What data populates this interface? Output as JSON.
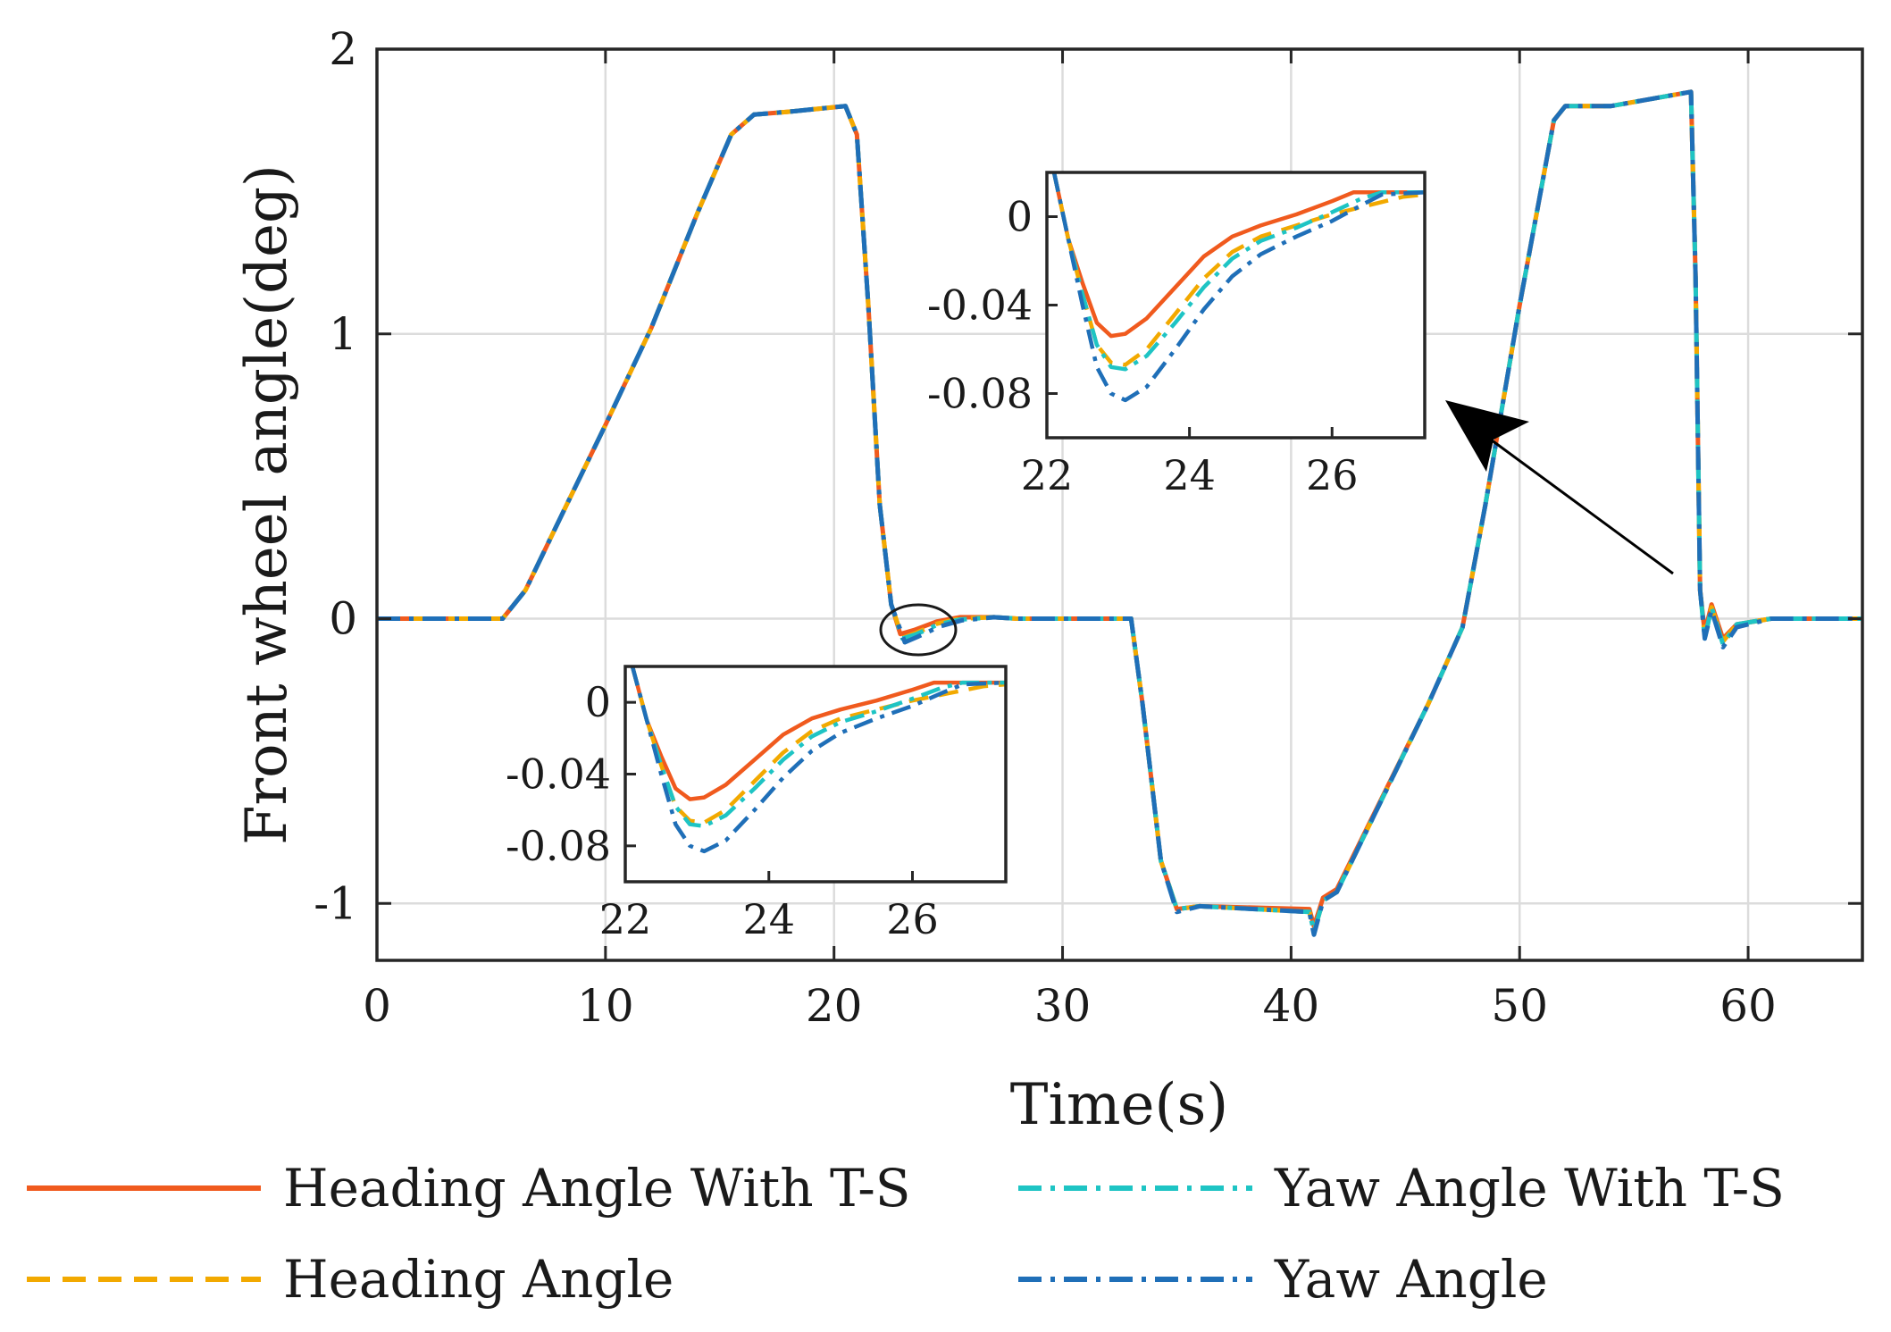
{
  "chart_data": {
    "type": "line",
    "xlabel": "Time(s)",
    "ylabel": "Front wheel angle(deg)",
    "xlim": [
      0,
      65
    ],
    "ylim": [
      -1.2,
      2.0
    ],
    "xticks": [
      0,
      10,
      20,
      30,
      40,
      50,
      60
    ],
    "yticks": [
      -1,
      0,
      1,
      2
    ],
    "xtick_labels": [
      "0",
      "10",
      "20",
      "30",
      "40",
      "50",
      "60"
    ],
    "ytick_labels": [
      "-1",
      "0",
      "1",
      "2"
    ],
    "grid": true,
    "legend_position": "bottom",
    "series": [
      {
        "name": "Heading Angle With T-S",
        "color": "#f05a1e",
        "style": "solid",
        "points": [
          [
            0,
            0
          ],
          [
            5.5,
            0
          ],
          [
            6.5,
            0.1
          ],
          [
            8,
            0.35
          ],
          [
            10,
            0.68
          ],
          [
            12,
            1.02
          ],
          [
            14,
            1.42
          ],
          [
            15.5,
            1.7
          ],
          [
            16.5,
            1.77
          ],
          [
            18,
            1.78
          ],
          [
            20.5,
            1.8
          ],
          [
            21,
            1.7
          ],
          [
            21.5,
            1.1
          ],
          [
            22,
            0.4
          ],
          [
            22.5,
            0.05
          ],
          [
            22.9,
            -0.054
          ],
          [
            23.5,
            -0.04
          ],
          [
            24.5,
            -0.01
          ],
          [
            25.5,
            0.005
          ],
          [
            27,
            0.005
          ],
          [
            28,
            0
          ],
          [
            33,
            0
          ],
          [
            33.5,
            -0.3
          ],
          [
            34.3,
            -0.85
          ],
          [
            35,
            -1.02
          ],
          [
            36,
            -1.01
          ],
          [
            40.8,
            -1.02
          ],
          [
            41,
            -1.08
          ],
          [
            41.4,
            -0.98
          ],
          [
            42,
            -0.95
          ],
          [
            46,
            -0.3
          ],
          [
            47.5,
            -0.03
          ],
          [
            48.5,
            0.4
          ],
          [
            50,
            1.1
          ],
          [
            51.5,
            1.75
          ],
          [
            52,
            1.8
          ],
          [
            54,
            1.8
          ],
          [
            57.5,
            1.85
          ],
          [
            57.7,
            1.2
          ],
          [
            57.9,
            0.1
          ],
          [
            58.1,
            -0.05
          ],
          [
            58.4,
            0.05
          ],
          [
            58.9,
            -0.07
          ],
          [
            59.5,
            -0.02
          ],
          [
            61,
            0
          ],
          [
            65,
            0
          ]
        ]
      },
      {
        "name": "Heading Angle",
        "color": "#f2a900",
        "style": "dashed",
        "points": [
          [
            0,
            0
          ],
          [
            5.5,
            0
          ],
          [
            6.5,
            0.1
          ],
          [
            8,
            0.35
          ],
          [
            10,
            0.68
          ],
          [
            12,
            1.02
          ],
          [
            14,
            1.42
          ],
          [
            15.5,
            1.7
          ],
          [
            16.5,
            1.77
          ],
          [
            18,
            1.78
          ],
          [
            20.5,
            1.8
          ],
          [
            21,
            1.7
          ],
          [
            21.5,
            1.1
          ],
          [
            22,
            0.4
          ],
          [
            22.5,
            0.05
          ],
          [
            23,
            -0.068
          ],
          [
            23.6,
            -0.05
          ],
          [
            24.5,
            -0.018
          ],
          [
            25.5,
            0
          ],
          [
            27,
            0.005
          ],
          [
            28,
            0
          ],
          [
            33,
            0
          ],
          [
            33.5,
            -0.3
          ],
          [
            34.3,
            -0.85
          ],
          [
            35,
            -1.02
          ],
          [
            36,
            -1.01
          ],
          [
            40.8,
            -1.03
          ],
          [
            41,
            -1.1
          ],
          [
            41.4,
            -0.99
          ],
          [
            42,
            -0.96
          ],
          [
            46,
            -0.3
          ],
          [
            47.5,
            -0.03
          ],
          [
            48.5,
            0.4
          ],
          [
            50,
            1.1
          ],
          [
            51.5,
            1.75
          ],
          [
            52,
            1.8
          ],
          [
            54,
            1.8
          ],
          [
            57.5,
            1.85
          ],
          [
            57.7,
            1.2
          ],
          [
            57.9,
            0.1
          ],
          [
            58.1,
            -0.06
          ],
          [
            58.4,
            0.04
          ],
          [
            58.9,
            -0.08
          ],
          [
            59.5,
            -0.02
          ],
          [
            61,
            0
          ],
          [
            65,
            0
          ]
        ]
      },
      {
        "name": "Yaw Angle With T-S",
        "color": "#1ec4c4",
        "style": "dashdot",
        "points": [
          [
            0,
            0
          ],
          [
            5.5,
            0
          ],
          [
            6.5,
            0.1
          ],
          [
            8,
            0.35
          ],
          [
            10,
            0.68
          ],
          [
            12,
            1.02
          ],
          [
            14,
            1.42
          ],
          [
            15.5,
            1.7
          ],
          [
            16.5,
            1.77
          ],
          [
            18,
            1.78
          ],
          [
            20.5,
            1.8
          ],
          [
            21,
            1.7
          ],
          [
            21.5,
            1.1
          ],
          [
            22,
            0.4
          ],
          [
            22.5,
            0.05
          ],
          [
            23,
            -0.07
          ],
          [
            23.6,
            -0.055
          ],
          [
            24.5,
            -0.022
          ],
          [
            25.5,
            -0.003
          ],
          [
            27,
            0.005
          ],
          [
            28,
            0
          ],
          [
            33,
            0
          ],
          [
            33.5,
            -0.3
          ],
          [
            34.3,
            -0.85
          ],
          [
            35,
            -1.02
          ],
          [
            36,
            -1.01
          ],
          [
            40.8,
            -1.03
          ],
          [
            41,
            -1.1
          ],
          [
            41.4,
            -0.99
          ],
          [
            42,
            -0.96
          ],
          [
            46,
            -0.3
          ],
          [
            47.5,
            -0.03
          ],
          [
            48.5,
            0.4
          ],
          [
            50,
            1.1
          ],
          [
            51.5,
            1.75
          ],
          [
            52,
            1.8
          ],
          [
            54,
            1.8
          ],
          [
            57.5,
            1.85
          ],
          [
            57.7,
            1.2
          ],
          [
            57.9,
            0.1
          ],
          [
            58.1,
            -0.07
          ],
          [
            58.4,
            0.04
          ],
          [
            58.9,
            -0.09
          ],
          [
            59.5,
            -0.02
          ],
          [
            61,
            0
          ],
          [
            65,
            0
          ]
        ]
      },
      {
        "name": "Yaw Angle",
        "color": "#1f6fb8",
        "style": "dashdot",
        "points": [
          [
            0,
            0
          ],
          [
            5.5,
            0
          ],
          [
            6.5,
            0.1
          ],
          [
            8,
            0.35
          ],
          [
            10,
            0.68
          ],
          [
            12,
            1.02
          ],
          [
            14,
            1.42
          ],
          [
            15.5,
            1.7
          ],
          [
            16.5,
            1.77
          ],
          [
            18,
            1.78
          ],
          [
            20.5,
            1.8
          ],
          [
            21,
            1.7
          ],
          [
            21.5,
            1.1
          ],
          [
            22,
            0.4
          ],
          [
            22.5,
            0.05
          ],
          [
            23.1,
            -0.083
          ],
          [
            23.7,
            -0.062
          ],
          [
            24.6,
            -0.028
          ],
          [
            25.6,
            -0.006
          ],
          [
            27,
            0.005
          ],
          [
            28,
            0
          ],
          [
            33,
            0
          ],
          [
            33.5,
            -0.3
          ],
          [
            34.3,
            -0.85
          ],
          [
            35,
            -1.03
          ],
          [
            36,
            -1.01
          ],
          [
            40.8,
            -1.03
          ],
          [
            41,
            -1.11
          ],
          [
            41.4,
            -0.99
          ],
          [
            42,
            -0.96
          ],
          [
            46,
            -0.3
          ],
          [
            47.5,
            -0.03
          ],
          [
            48.5,
            0.4
          ],
          [
            50,
            1.1
          ],
          [
            51.5,
            1.75
          ],
          [
            52,
            1.8
          ],
          [
            54,
            1.8
          ],
          [
            57.5,
            1.85
          ],
          [
            57.7,
            1.2
          ],
          [
            57.9,
            0.1
          ],
          [
            58.1,
            -0.07
          ],
          [
            58.4,
            0.03
          ],
          [
            58.9,
            -0.1
          ],
          [
            59.5,
            -0.03
          ],
          [
            61,
            0
          ],
          [
            65,
            0
          ]
        ]
      }
    ],
    "insets": [
      {
        "name": "upper-inset",
        "xlim": [
          22,
          27.3
        ],
        "ylim": [
          -0.1,
          0.02
        ],
        "xticks": [
          22,
          24,
          26
        ],
        "yticks": [
          0,
          -0.04,
          -0.08
        ],
        "xtick_labels": [
          "22",
          "24",
          "26"
        ],
        "ytick_labels": [
          "0",
          "-0.04",
          "-0.08"
        ]
      },
      {
        "name": "lower-inset",
        "xlim": [
          22,
          27.3
        ],
        "ylim": [
          -0.1,
          0.02
        ],
        "xticks": [
          22,
          24,
          26
        ],
        "yticks": [
          0,
          -0.04,
          -0.08
        ],
        "xtick_labels": [
          "22",
          "24",
          "26"
        ],
        "ytick_labels": [
          "0",
          "-0.04",
          "-0.08"
        ]
      }
    ],
    "inset_series": [
      {
        "name": "Heading Angle With T-S",
        "points": [
          [
            22.1,
            0.02
          ],
          [
            22.3,
            -0.01
          ],
          [
            22.5,
            -0.03
          ],
          [
            22.7,
            -0.048
          ],
          [
            22.9,
            -0.054
          ],
          [
            23.1,
            -0.053
          ],
          [
            23.4,
            -0.046
          ],
          [
            23.8,
            -0.032
          ],
          [
            24.2,
            -0.018
          ],
          [
            24.6,
            -0.009
          ],
          [
            25,
            -0.004
          ],
          [
            25.5,
            0.001
          ],
          [
            26,
            0.007
          ],
          [
            26.3,
            0.011
          ],
          [
            26.6,
            0.011
          ],
          [
            27.1,
            0.011
          ],
          [
            27.3,
            0.011
          ]
        ]
      },
      {
        "name": "Heading Angle",
        "points": [
          [
            22.1,
            0.02
          ],
          [
            22.3,
            -0.01
          ],
          [
            22.5,
            -0.035
          ],
          [
            22.7,
            -0.058
          ],
          [
            22.9,
            -0.066
          ],
          [
            23.1,
            -0.067
          ],
          [
            23.4,
            -0.06
          ],
          [
            23.8,
            -0.044
          ],
          [
            24.2,
            -0.028
          ],
          [
            24.6,
            -0.016
          ],
          [
            25,
            -0.009
          ],
          [
            25.5,
            -0.004
          ],
          [
            26,
            0.001
          ],
          [
            26.5,
            0.005
          ],
          [
            27,
            0.009
          ],
          [
            27.3,
            0.01
          ]
        ]
      },
      {
        "name": "Yaw Angle With T-S",
        "points": [
          [
            22.1,
            0.02
          ],
          [
            22.3,
            -0.01
          ],
          [
            22.5,
            -0.035
          ],
          [
            22.7,
            -0.058
          ],
          [
            22.9,
            -0.068
          ],
          [
            23.1,
            -0.069
          ],
          [
            23.4,
            -0.063
          ],
          [
            23.8,
            -0.048
          ],
          [
            24.2,
            -0.032
          ],
          [
            24.6,
            -0.019
          ],
          [
            25,
            -0.011
          ],
          [
            25.5,
            -0.005
          ],
          [
            26,
            0.002
          ],
          [
            26.4,
            0.008
          ],
          [
            26.7,
            0.011
          ],
          [
            27.3,
            0.011
          ]
        ]
      },
      {
        "name": "Yaw Angle",
        "points": [
          [
            22.1,
            0.02
          ],
          [
            22.3,
            -0.01
          ],
          [
            22.5,
            -0.04
          ],
          [
            22.7,
            -0.068
          ],
          [
            22.9,
            -0.08
          ],
          [
            23.1,
            -0.083
          ],
          [
            23.4,
            -0.077
          ],
          [
            23.8,
            -0.06
          ],
          [
            24.2,
            -0.042
          ],
          [
            24.6,
            -0.027
          ],
          [
            25,
            -0.017
          ],
          [
            25.5,
            -0.009
          ],
          [
            26,
            -0.002
          ],
          [
            26.4,
            0.005
          ],
          [
            26.7,
            0.01
          ],
          [
            27.3,
            0.011
          ]
        ]
      }
    ]
  }
}
